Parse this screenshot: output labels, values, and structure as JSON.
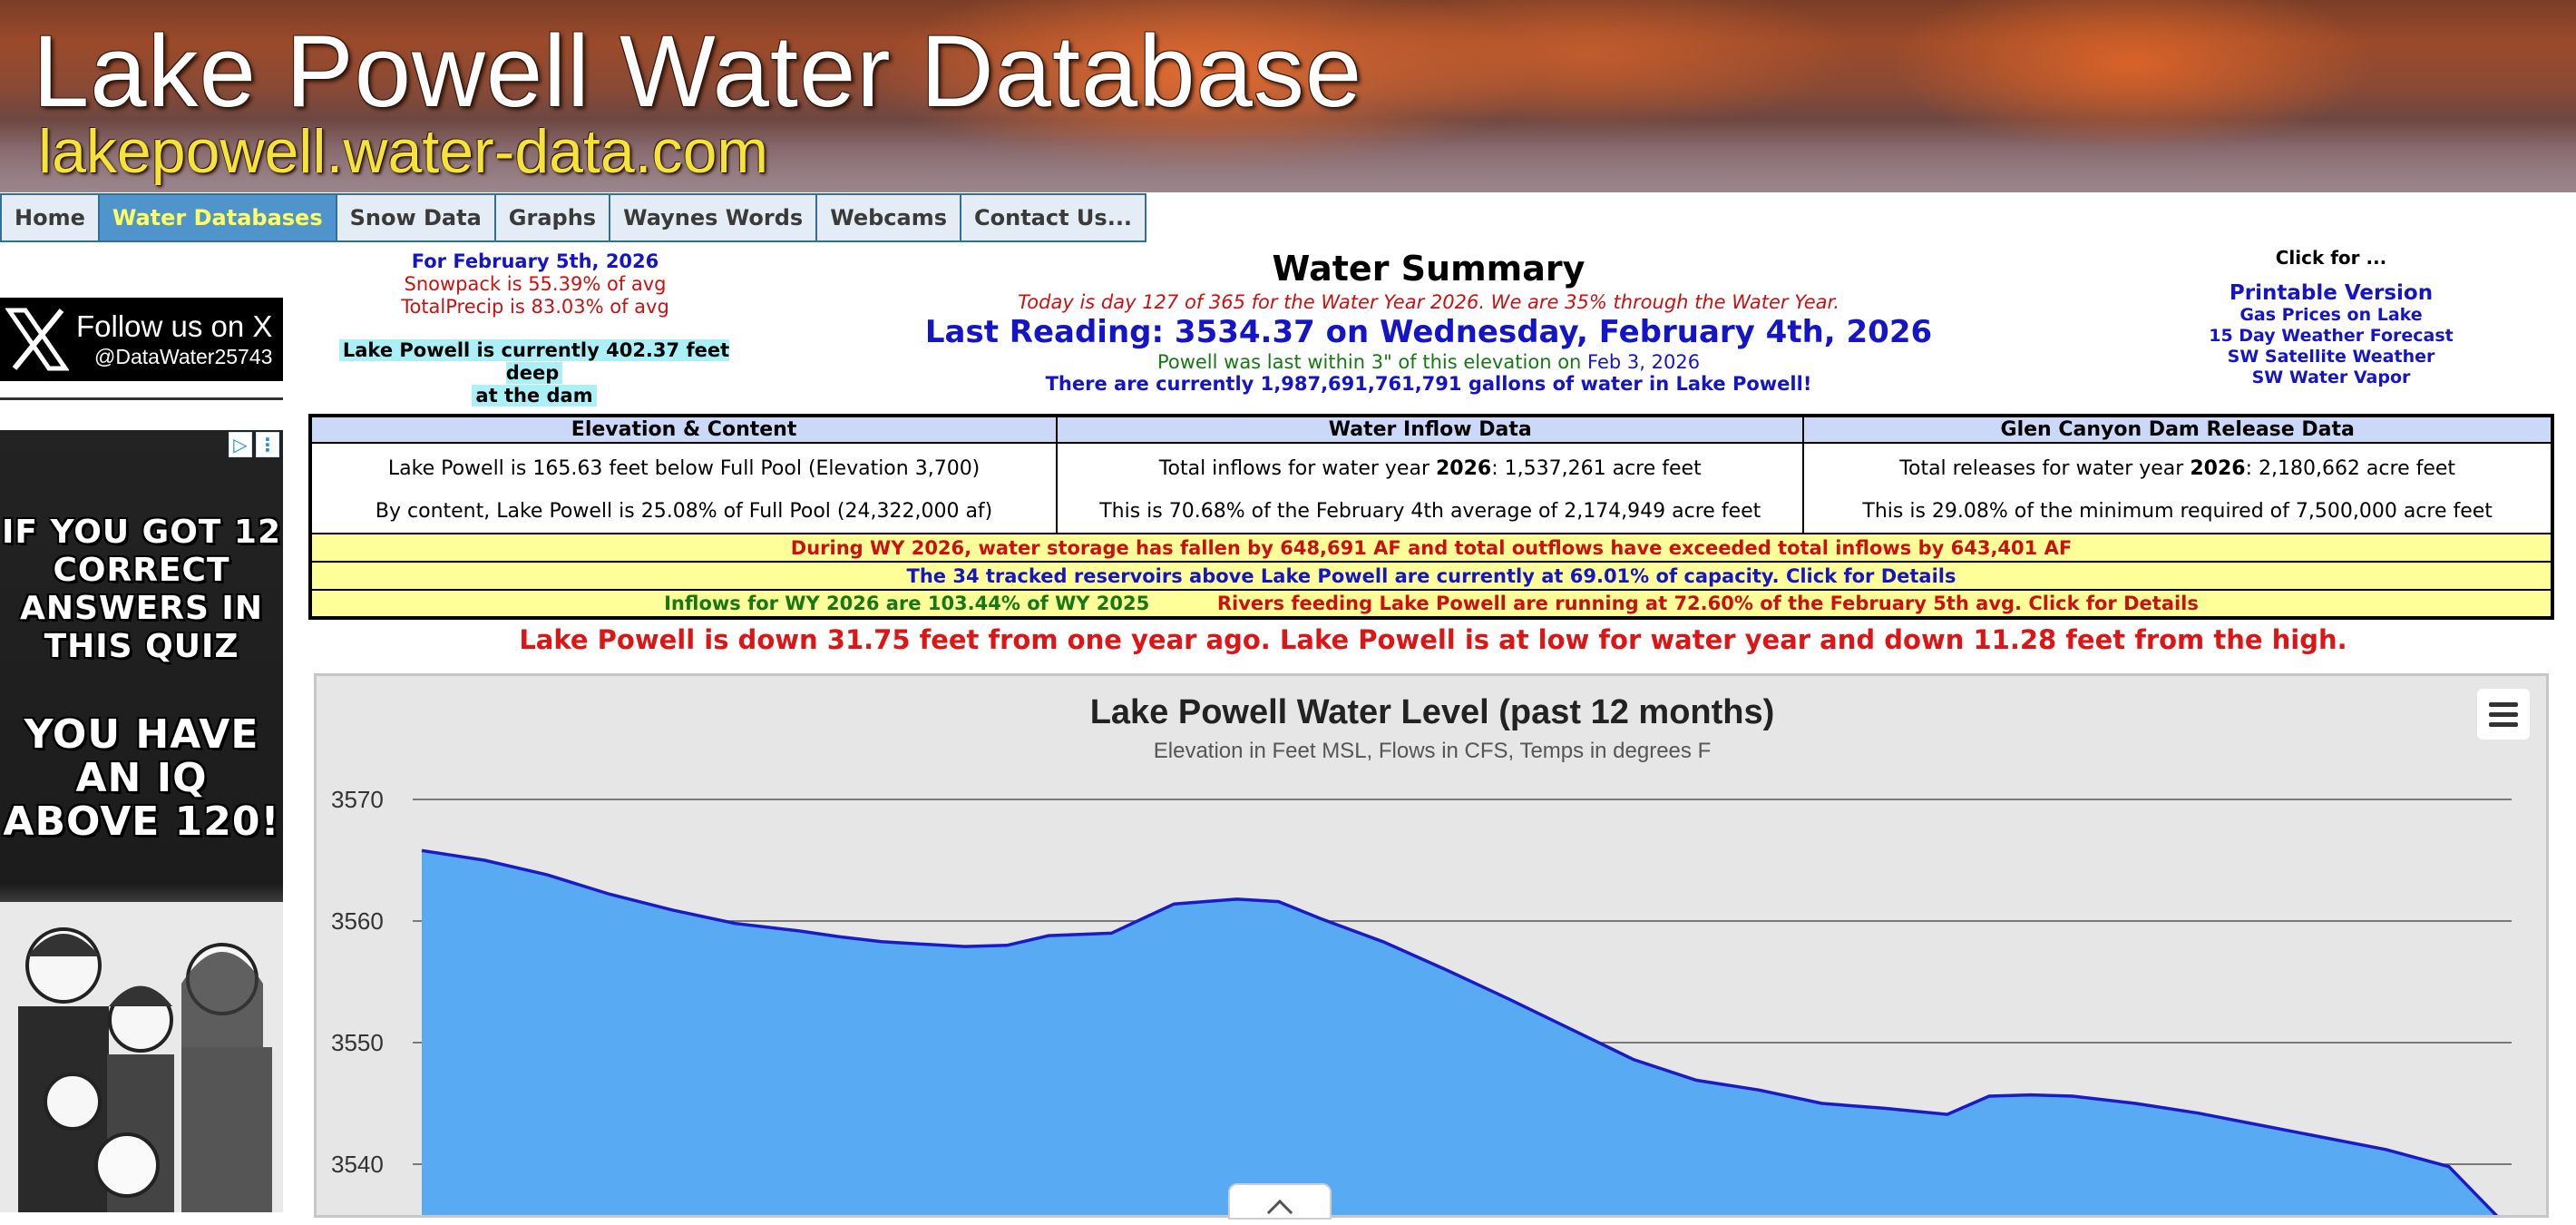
{
  "banner": {
    "title": "Lake Powell Water Database",
    "url": "lakepowell.water-data.com"
  },
  "nav": [
    {
      "label": "Home",
      "active": false
    },
    {
      "label": "Water Databases",
      "active": true
    },
    {
      "label": "Snow Data",
      "active": false
    },
    {
      "label": "Graphs",
      "active": false
    },
    {
      "label": "Waynes Words",
      "active": false
    },
    {
      "label": "Webcams",
      "active": false
    },
    {
      "label": "Contact Us...",
      "active": false
    }
  ],
  "sidebar": {
    "follow_x": {
      "line1": "Follow us on X",
      "line2": "@DataWater25743",
      "icon": "x-logo-icon"
    },
    "ad": {
      "text1": "IF YOU GOT 12 CORRECT ANSWERS IN THIS QUIZ",
      "text2": "YOU HAVE AN IQ ABOVE 120!",
      "adchoices_icon": "adchoices-icon",
      "close_icon": "ad-options-icon"
    }
  },
  "header": {
    "date_line": "For February 5th, 2026",
    "snowpack": "Snowpack is 55.39% of avg",
    "precip": "TotalPrecip is 83.03% of avg",
    "depth_line1": "Lake Powell is currently 402.37 feet deep",
    "depth_line2": "at the dam"
  },
  "summary": {
    "title": "Water Summary",
    "day_line": "Today is day 127 of 365 for the Water Year 2026. We are 35% through the Water Year.",
    "last_reading": "Last Reading: 3534.37 on Wednesday, February 4th, 2026",
    "within_text": "Powell was last within 3\" of this elevation on ",
    "within_date": "Feb 3, 2026",
    "gallons": "There are currently 1,987,691,761,791 gallons of water in Lake Powell!"
  },
  "click_for": {
    "header": "Click for ...",
    "links": [
      "Printable Version",
      "Gas Prices on Lake",
      "15 Day Weather Forecast",
      "SW Satellite Weather",
      "SW Water Vapor"
    ]
  },
  "table": {
    "headers": [
      "Elevation & Content",
      "Water Inflow Data",
      "Glen Canyon Dam Release Data"
    ],
    "col1": [
      "Lake Powell is 165.63 feet below Full Pool (Elevation 3,700)",
      "By content, Lake Powell is 25.08% of Full Pool (24,322,000 af)"
    ],
    "col2_pre": "Total inflows for water year ",
    "col2_year": "2026",
    "col2_post": ": 1,537,261 acre feet",
    "col2_line2": "This is 70.68% of the February 4th average of 2,174,949 acre feet",
    "col3_pre": "Total releases for water year ",
    "col3_year": "2026",
    "col3_post": ": 2,180,662 acre feet",
    "col3_line2": "This is 29.08% of the minimum required of 7,500,000 acre feet",
    "storage_line": "During WY 2026, water storage has fallen by 648,691 AF and total outflows have exceeded total inflows by 643,401 AF",
    "reservoirs_line": "The 34 tracked reservoirs above Lake Powell are currently at 69.01% of capacity. Click for Details",
    "inflows_line": "Inflows for WY 2026 are 103.44% of WY 2025",
    "rivers_line": "Rivers feeding Lake Powell are running at 72.60% of the February 5th avg. Click for Details"
  },
  "down_line": "Lake Powell is down 31.75 feet from one year ago.   Lake Powell is at low for water year and down 11.28 feet from the high.",
  "chart_data": {
    "type": "area",
    "title": "Lake Powell Water Level (past 12 months)",
    "subtitle": "Elevation in Feet MSL, Flows in CFS, Temps in degrees F",
    "y_ticks": [
      3570,
      3560,
      3550,
      3540
    ],
    "ylim": [
      3534,
      3570
    ],
    "grid": true,
    "fill_color": "#58aaf2",
    "line_color": "#1a1ac8",
    "menu_icon": "hamburger-menu-icon",
    "x": [
      0,
      3,
      6,
      9,
      12,
      15,
      18,
      20,
      22,
      24,
      26,
      28,
      30,
      33,
      36,
      39,
      41,
      43,
      46,
      49,
      52,
      55,
      58,
      61,
      64,
      67,
      70,
      73,
      75,
      77,
      79,
      82,
      85,
      88,
      91,
      94,
      97,
      100
    ],
    "values": [
      3565.8,
      3565.0,
      3563.8,
      3562.2,
      3560.9,
      3559.8,
      3559.2,
      3558.7,
      3558.3,
      3558.1,
      3557.9,
      3558.0,
      3558.8,
      3559.0,
      3561.4,
      3561.8,
      3561.6,
      3560.2,
      3558.3,
      3556.0,
      3553.6,
      3551.1,
      3548.6,
      3546.9,
      3546.1,
      3545.0,
      3544.6,
      3544.1,
      3545.6,
      3545.7,
      3545.6,
      3545.0,
      3544.2,
      3543.2,
      3542.2,
      3541.2,
      3539.8,
      3534.5
    ]
  }
}
